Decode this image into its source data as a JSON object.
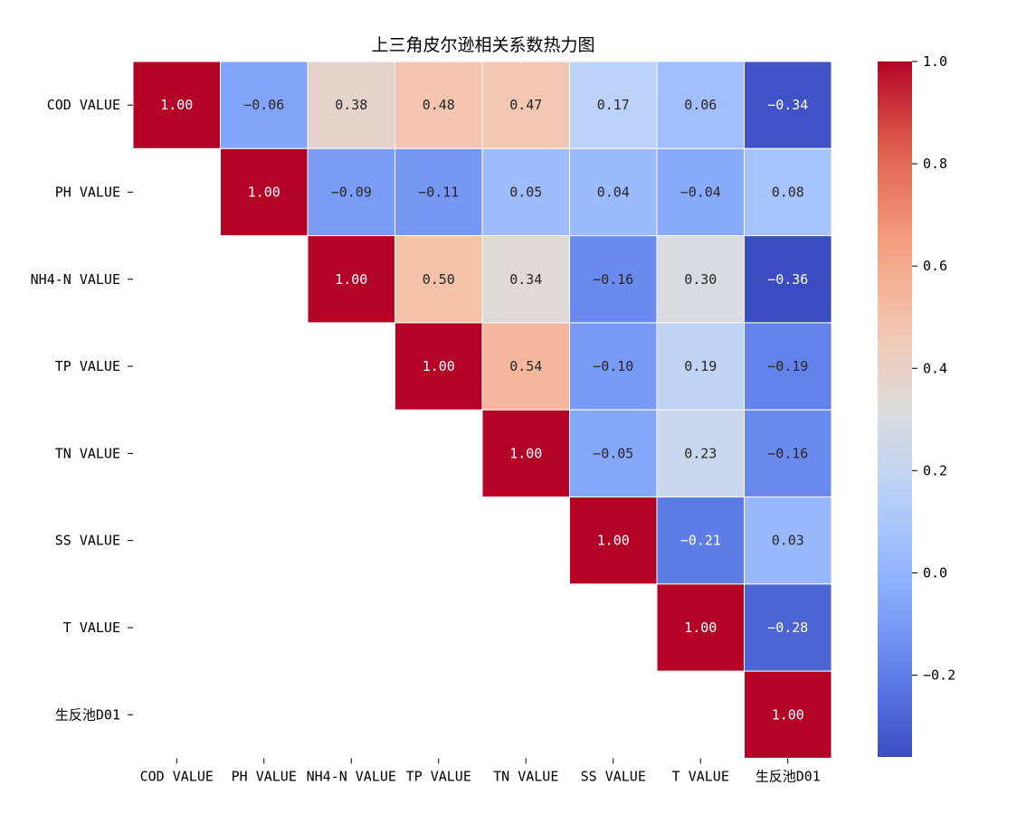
{
  "chart_data": {
    "type": "heatmap",
    "title": "上三角皮尔逊相关系数热力图",
    "colormap": "coolwarm",
    "mask": "lower-triangle",
    "rows": [
      "COD VALUE",
      "PH VALUE",
      "NH4-N VALUE",
      "TP VALUE",
      "TN VALUE",
      "SS VALUE",
      "T VALUE",
      "生反池D01"
    ],
    "columns": [
      "COD VALUE",
      "PH VALUE",
      "NH4-N VALUE",
      "TP VALUE",
      "TN VALUE",
      "SS VALUE",
      "T VALUE",
      "生反池D01"
    ],
    "values": [
      [
        1.0,
        -0.06,
        0.38,
        0.48,
        0.47,
        0.17,
        0.06,
        -0.34
      ],
      [
        null,
        1.0,
        -0.09,
        -0.11,
        0.05,
        0.04,
        -0.04,
        0.08
      ],
      [
        null,
        null,
        1.0,
        0.5,
        0.34,
        -0.16,
        0.3,
        -0.36
      ],
      [
        null,
        null,
        null,
        1.0,
        0.54,
        -0.1,
        0.19,
        -0.19
      ],
      [
        null,
        null,
        null,
        null,
        1.0,
        -0.05,
        0.23,
        -0.16
      ],
      [
        null,
        null,
        null,
        null,
        null,
        1.0,
        -0.21,
        0.03
      ],
      [
        null,
        null,
        null,
        null,
        null,
        null,
        1.0,
        -0.28
      ],
      [
        null,
        null,
        null,
        null,
        null,
        null,
        null,
        1.0
      ]
    ],
    "value_range": [
      -0.36,
      1.0
    ],
    "colorbar_ticks": [
      "1.0",
      "0.8",
      "0.6",
      "0.4",
      "0.2",
      "0.0",
      "−0.2"
    ],
    "colorbar_tick_values": [
      1.0,
      0.8,
      0.6,
      0.4,
      0.2,
      0.0,
      -0.2
    ],
    "annotation_format": "2 decimals"
  }
}
